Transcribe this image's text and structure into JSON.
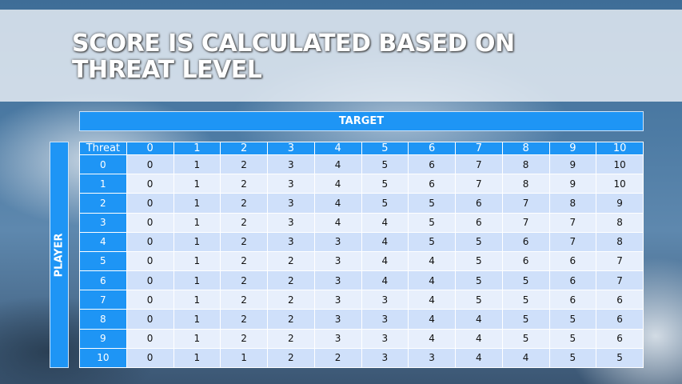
{
  "title": "SCORE IS CALCULATED BASED ON THREAT LEVEL",
  "title_lines": [
    "SCORE IS CALCULATED BASED ON",
    "THREAT LEVEL"
  ],
  "target_label": "TARGET",
  "player_label": "PLAYER",
  "table": {
    "corner": "Threat",
    "columns": [
      "0",
      "1",
      "2",
      "3",
      "4",
      "5",
      "6",
      "7",
      "8",
      "9",
      "10"
    ],
    "rows": [
      {
        "player": "0",
        "values": [
          "0",
          "1",
          "2",
          "3",
          "4",
          "5",
          "6",
          "7",
          "8",
          "9",
          "10"
        ]
      },
      {
        "player": "1",
        "values": [
          "0",
          "1",
          "2",
          "3",
          "4",
          "5",
          "6",
          "7",
          "8",
          "9",
          "10"
        ]
      },
      {
        "player": "2",
        "values": [
          "0",
          "1",
          "2",
          "3",
          "4",
          "5",
          "5",
          "6",
          "7",
          "8",
          "9"
        ]
      },
      {
        "player": "3",
        "values": [
          "0",
          "1",
          "2",
          "3",
          "4",
          "4",
          "5",
          "6",
          "7",
          "7",
          "8"
        ]
      },
      {
        "player": "4",
        "values": [
          "0",
          "1",
          "2",
          "3",
          "3",
          "4",
          "5",
          "5",
          "6",
          "7",
          "8"
        ]
      },
      {
        "player": "5",
        "values": [
          "0",
          "1",
          "2",
          "2",
          "3",
          "4",
          "4",
          "5",
          "6",
          "6",
          "7"
        ]
      },
      {
        "player": "6",
        "values": [
          "0",
          "1",
          "2",
          "2",
          "3",
          "4",
          "4",
          "5",
          "5",
          "6",
          "7"
        ]
      },
      {
        "player": "7",
        "values": [
          "0",
          "1",
          "2",
          "2",
          "3",
          "3",
          "4",
          "5",
          "5",
          "6",
          "6"
        ]
      },
      {
        "player": "8",
        "values": [
          "0",
          "1",
          "2",
          "2",
          "3",
          "3",
          "4",
          "4",
          "5",
          "5",
          "6"
        ]
      },
      {
        "player": "9",
        "values": [
          "0",
          "1",
          "2",
          "2",
          "3",
          "3",
          "4",
          "4",
          "5",
          "5",
          "6"
        ]
      },
      {
        "player": "10",
        "values": [
          "0",
          "1",
          "1",
          "2",
          "2",
          "3",
          "3",
          "4",
          "4",
          "5",
          "5"
        ]
      }
    ]
  },
  "colors": {
    "header": "#1e95f5",
    "row_odd": "#cfe0fa",
    "row_even": "#e7effc"
  }
}
